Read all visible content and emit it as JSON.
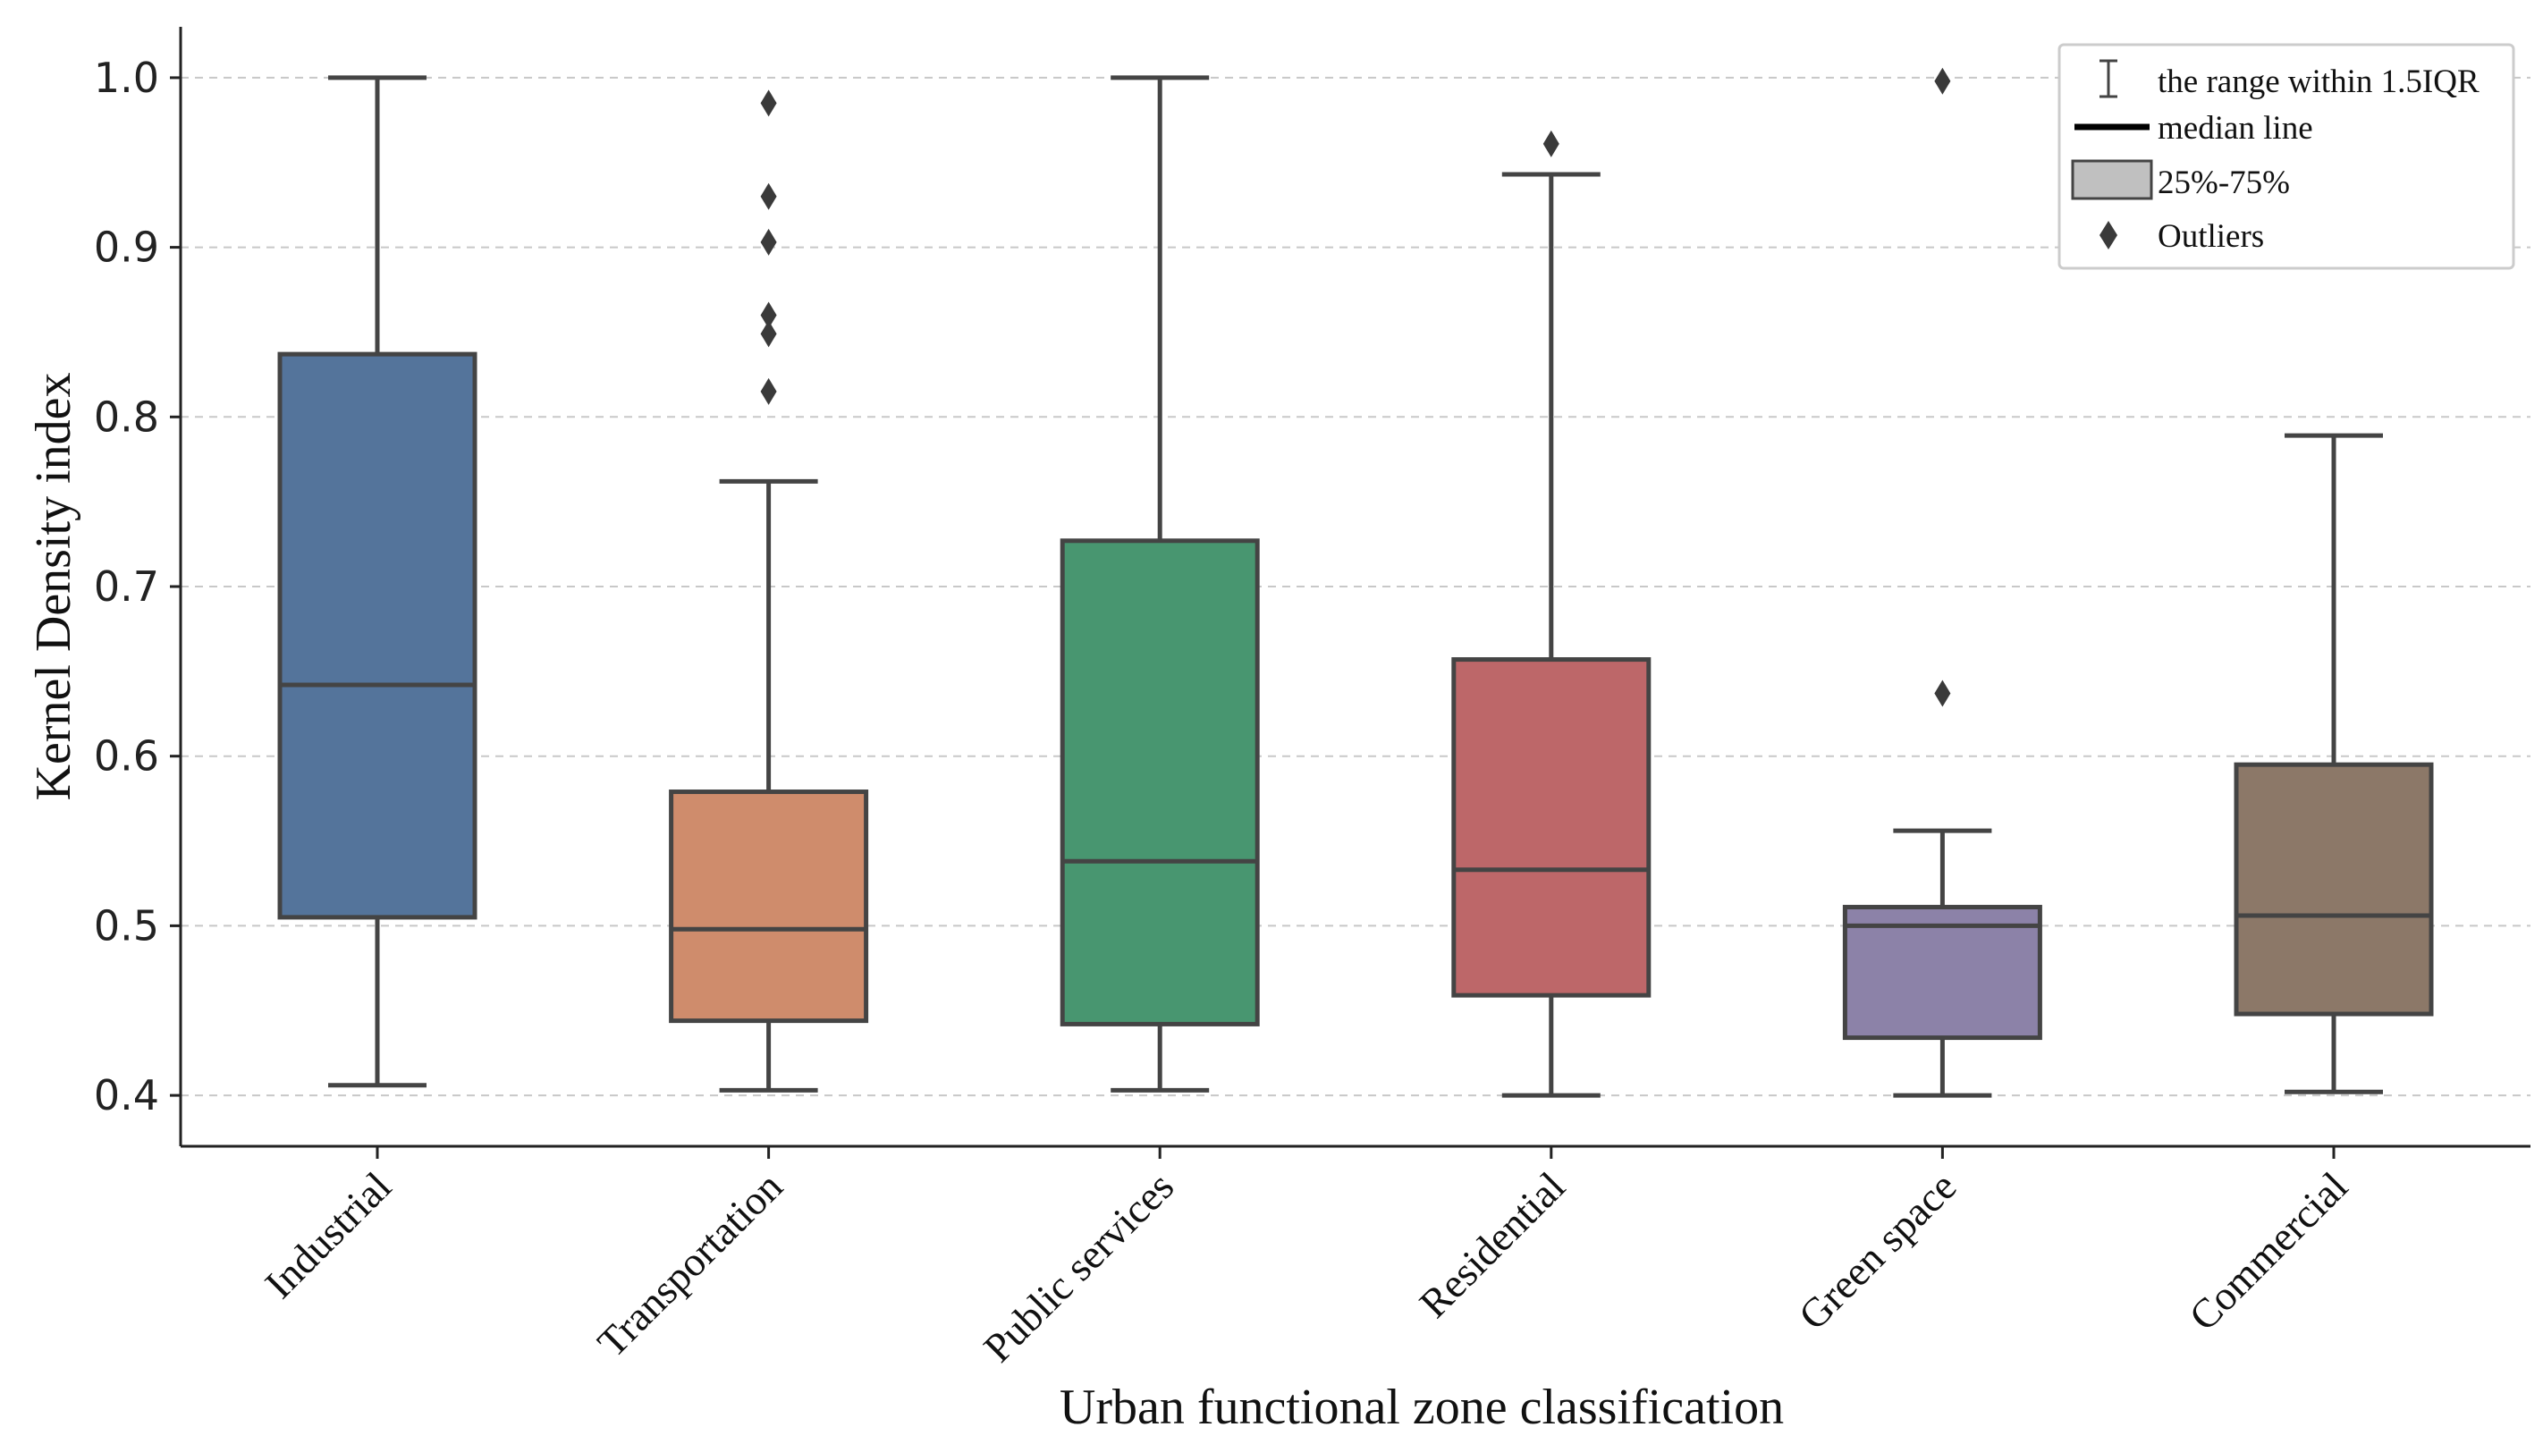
{
  "chart_data": {
    "type": "box",
    "title": "",
    "xlabel": "Urban functional zone classification",
    "ylabel": "Kernel Density index",
    "ylim": [
      0.37,
      1.03
    ],
    "yticks": [
      "0.4",
      "0.5",
      "0.6",
      "0.7",
      "0.8",
      "0.9",
      "1.0"
    ],
    "grid": true,
    "legend": {
      "position": "top-right",
      "items": [
        {
          "symbol": "whisker",
          "label": "the range within 1.5IQR"
        },
        {
          "symbol": "median",
          "label": "median line"
        },
        {
          "symbol": "box",
          "label": "25%-75%"
        },
        {
          "symbol": "diamond",
          "label": "Outliers"
        }
      ]
    },
    "categories": [
      {
        "name": "Industrial",
        "color": "#54749b",
        "whisker_low": 0.406,
        "q1": 0.505,
        "median": 0.642,
        "q3": 0.837,
        "whisker_high": 1.0,
        "outliers": []
      },
      {
        "name": "Transportation",
        "color": "#cf8c6c",
        "whisker_low": 0.403,
        "q1": 0.444,
        "median": 0.498,
        "q3": 0.579,
        "whisker_high": 0.762,
        "outliers": [
          0.985,
          0.93,
          0.903,
          0.86,
          0.849,
          0.815
        ]
      },
      {
        "name": "Public services",
        "color": "#489670",
        "whisker_low": 0.403,
        "q1": 0.442,
        "median": 0.538,
        "q3": 0.727,
        "whisker_high": 1.0,
        "outliers": []
      },
      {
        "name": "Residential",
        "color": "#bd6769",
        "whisker_low": 0.4,
        "q1": 0.459,
        "median": 0.533,
        "q3": 0.657,
        "whisker_high": 0.943,
        "outliers": [
          0.961
        ]
      },
      {
        "name": "Green space",
        "color": "#8c82a8",
        "whisker_low": 0.4,
        "q1": 0.434,
        "median": 0.5,
        "q3": 0.511,
        "whisker_high": 0.556,
        "outliers": [
          0.998,
          0.637
        ]
      },
      {
        "name": "Commercial",
        "color": "#8c7868",
        "whisker_low": 0.402,
        "q1": 0.448,
        "median": 0.506,
        "q3": 0.595,
        "whisker_high": 0.789,
        "outliers": []
      }
    ]
  }
}
